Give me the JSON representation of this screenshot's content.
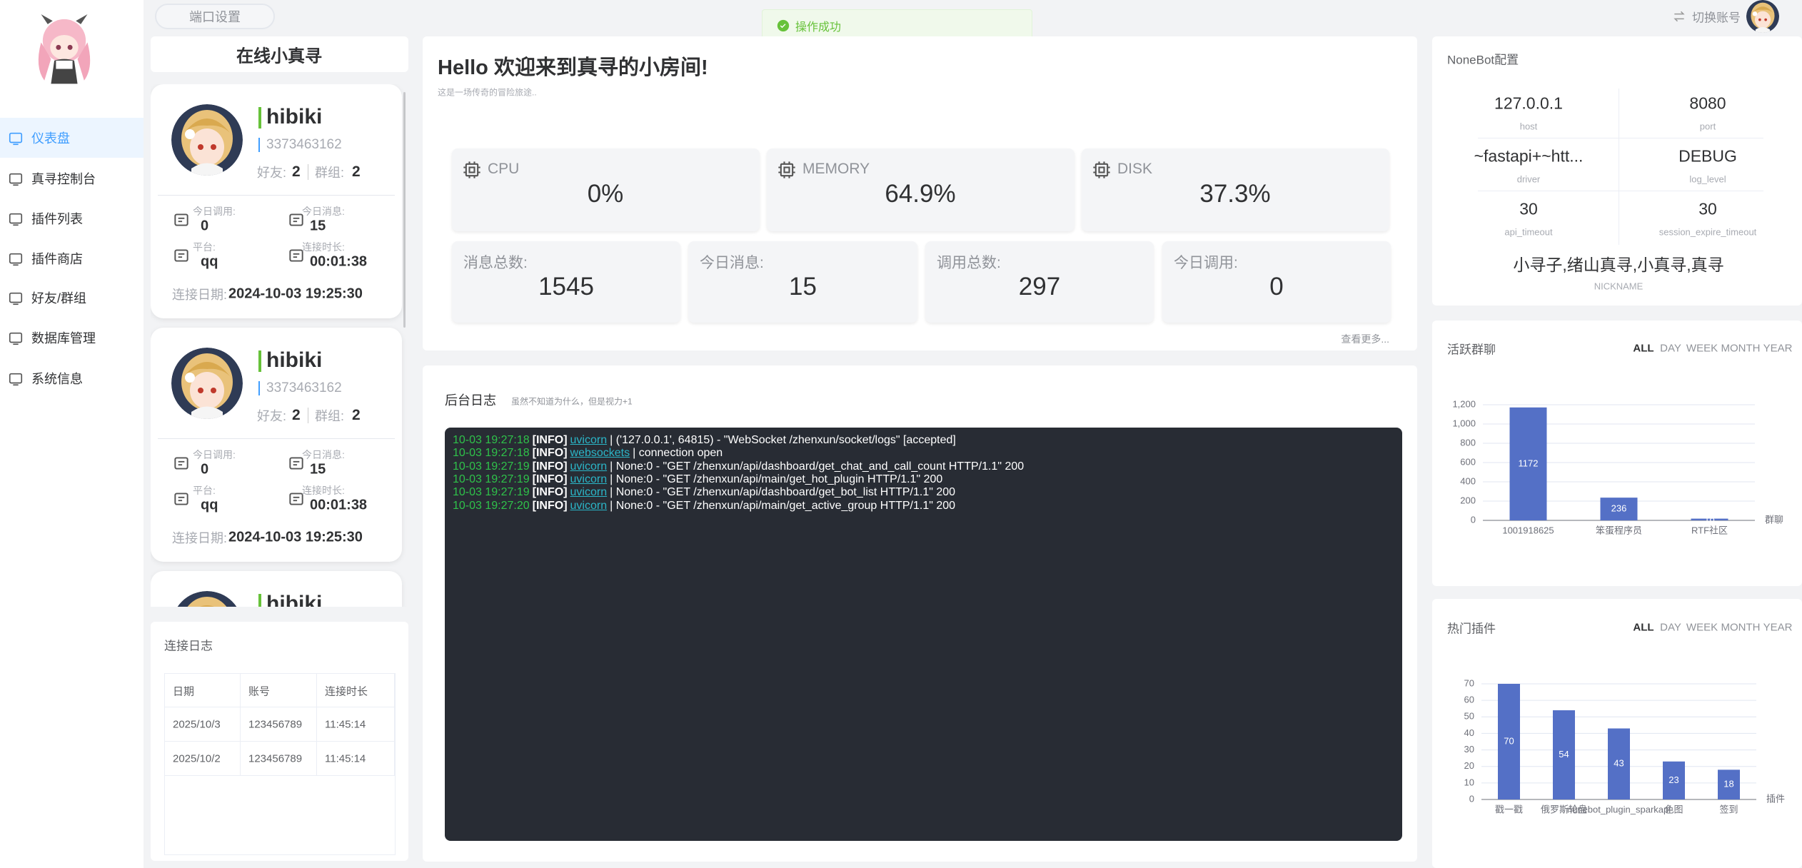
{
  "topbar": {
    "port_settings": "端口设置",
    "toast": "操作成功",
    "switch_account": "切换账号"
  },
  "menu": [
    "仪表盘",
    "真寻控制台",
    "插件列表",
    "插件商店",
    "好友/群组",
    "数据库管理",
    "系统信息"
  ],
  "online": {
    "title": "在线小真寻",
    "bots": [
      {
        "name": "hibiki",
        "id": "3373463162",
        "friends_label": "好友:",
        "friends": 2,
        "groups_label": "群组:",
        "groups": 2,
        "today_calls_label": "今日调用:",
        "today_calls": 0,
        "today_msgs_label": "今日消息:",
        "today_msgs": 15,
        "platform_label": "平台:",
        "platform": "qq",
        "duration_label": "连接时长:",
        "duration": "00:01:38",
        "date_label": "连接日期:",
        "date": "2024-10-03 19:25:30"
      },
      {
        "name": "hibiki",
        "id": "3373463162",
        "friends_label": "好友:",
        "friends": 2,
        "groups_label": "群组:",
        "groups": 2,
        "today_calls_label": "今日调用:",
        "today_calls": 0,
        "today_msgs_label": "今日消息:",
        "today_msgs": 15,
        "platform_label": "平台:",
        "platform": "qq",
        "duration_label": "连接时长:",
        "duration": "00:01:38",
        "date_label": "连接日期:",
        "date": "2024-10-03 19:25:30"
      },
      {
        "name": "hibiki"
      }
    ]
  },
  "connection_log": {
    "title": "连接日志",
    "columns": [
      "日期",
      "账号",
      "连接时长"
    ],
    "rows": [
      [
        "2025/10/3",
        "123456789",
        "11:45:14"
      ],
      [
        "2025/10/2",
        "123456789",
        "11:45:14"
      ]
    ]
  },
  "welcome": {
    "title": "Hello 欢迎来到真寻的小房间!",
    "subtitle": "这是一场传奇的冒险旅途.."
  },
  "system": [
    {
      "label": "CPU",
      "value": "0%"
    },
    {
      "label": "MEMORY",
      "value": "64.9%"
    },
    {
      "label": "DISK",
      "value": "37.3%"
    }
  ],
  "stats": [
    {
      "label": "消息总数:",
      "value": 1545
    },
    {
      "label": "今日消息:",
      "value": 15
    },
    {
      "label": "调用总数:",
      "value": 297
    },
    {
      "label": "今日调用:",
      "value": 0
    }
  ],
  "more": "查看更多...",
  "log": {
    "title": "后台日志",
    "subtitle": "虽然不知道为什么，但是视力+1",
    "lines": [
      {
        "time": "10-03 19:27:18",
        "level": "[INFO]",
        "source": "uvicorn",
        "message": "| ('127.0.0.1', 64815) - \"WebSocket /zhenxun/socket/logs\" [accepted]"
      },
      {
        "time": "10-03 19:27:18",
        "level": "[INFO]",
        "source": "websockets",
        "message": "| connection open"
      },
      {
        "time": "10-03 19:27:19",
        "level": "[INFO]",
        "source": "uvicorn",
        "message": "| None:0 - \"GET /zhenxun/api/dashboard/get_chat_and_call_count HTTP/1.1\" 200"
      },
      {
        "time": "10-03 19:27:19",
        "level": "[INFO]",
        "source": "uvicorn",
        "message": "| None:0 - \"GET /zhenxun/api/main/get_hot_plugin HTTP/1.1\" 200"
      },
      {
        "time": "10-03 19:27:19",
        "level": "[INFO]",
        "source": "uvicorn",
        "message": "| None:0 - \"GET /zhenxun/api/dashboard/get_bot_list HTTP/1.1\" 200"
      },
      {
        "time": "10-03 19:27:20",
        "level": "[INFO]",
        "source": "uvicorn",
        "message": "| None:0 - \"GET /zhenxun/api/main/get_active_group HTTP/1.1\" 200"
      }
    ]
  },
  "nonebot": {
    "title": "NoneBot配置",
    "items": [
      {
        "value": "127.0.0.1",
        "key": "host"
      },
      {
        "value": "8080",
        "key": "port"
      },
      {
        "value": "~fastapi+~htt...",
        "key": "driver"
      },
      {
        "value": "DEBUG",
        "key": "log_level"
      },
      {
        "value": "30",
        "key": "api_timeout"
      },
      {
        "value": "30",
        "key": "session_expire_timeout"
      }
    ],
    "nickname": {
      "value": "小寻子,绪山真寻,小真寻,真寻",
      "key": "NICKNAME"
    }
  },
  "chart_tabs": [
    "ALL",
    "DAY",
    "WEEK",
    "MONTH",
    "YEAR"
  ],
  "chart_data": [
    {
      "type": "bar",
      "title": "活跃群聊",
      "x_label": "群聊",
      "categories": [
        "1001918625",
        "笨蛋程序员",
        "RTF社区"
      ],
      "values": [
        1172,
        236,
        18
      ],
      "color": "#5470c6",
      "ylim": [
        0,
        1200
      ],
      "yticks": [
        0,
        200,
        400,
        600,
        800,
        {
          "value": 1000,
          "label": "1,000"
        },
        {
          "value": 1200,
          "label": "1,200"
        }
      ],
      "grid": true
    },
    {
      "type": "bar",
      "title": "热门插件",
      "x_label": "插件",
      "categories": [
        "戳一戳",
        "俄罗斯轮盘",
        "nonebot_plugin_sparkapi",
        "色图",
        "签到"
      ],
      "values": [
        70,
        54,
        43,
        23,
        18
      ],
      "color": "#5470c6",
      "ylim": [
        0,
        70
      ],
      "yticks": [
        0,
        10,
        20,
        30,
        40,
        50,
        60,
        70
      ],
      "grid": true
    }
  ]
}
